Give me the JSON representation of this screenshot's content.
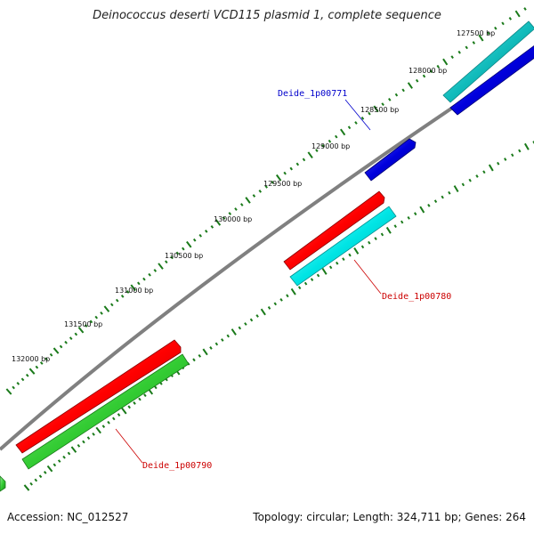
{
  "title": "Deinococcus deserti VCD115 plasmid 1, complete sequence",
  "footer": {
    "accession": "Accession: NC_012527",
    "summary": "Topology: circular; Length: 324,711 bp; Genes: 264"
  },
  "colors": {
    "backbone": "#808080",
    "ticks": "#1a7a1a",
    "feature_red": "#ff0000",
    "feature_blue": "#0000dd",
    "feature_cyan": "#00e5e5",
    "feature_teal": "#11bcbc",
    "feature_green": "#33cc33",
    "label_blue": "#0000cc",
    "label_red": "#cc0000"
  },
  "ticks": [
    {
      "label": "127500 bp"
    },
    {
      "label": "128000 bp"
    },
    {
      "label": "128500 bp"
    },
    {
      "label": "129000 bp"
    },
    {
      "label": "129500 bp"
    },
    {
      "label": "130000 bp"
    },
    {
      "label": "130500 bp"
    },
    {
      "label": "131000 bp"
    },
    {
      "label": "131500 bp"
    },
    {
      "label": "132000 bp"
    }
  ],
  "gene_labels": [
    {
      "text": "Deide_1p00771",
      "color": "#0000cc"
    },
    {
      "text": "Deide_1p00780",
      "color": "#cc0000"
    },
    {
      "text": "Deide_1p00790",
      "color": "#cc0000"
    }
  ]
}
